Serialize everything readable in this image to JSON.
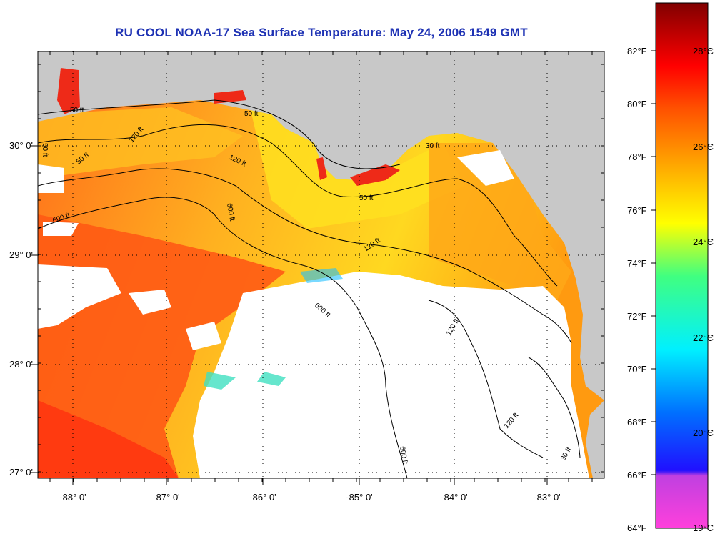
{
  "title": "RU COOL  NOAA-17  Sea Surface Temperature:  May 24, 2006 1549 GMT",
  "map": {
    "lon_labels": [
      "-88° 0'",
      "-87° 0'",
      "-86° 0'",
      "-85° 0'",
      "-84° 0'",
      "-83° 0'"
    ],
    "lat_labels": [
      "30° 0'",
      "29° 0'",
      "28° 0'",
      "27° 0'"
    ],
    "contour_labels": [
      "50 ft",
      "50 ft",
      "50 ft",
      "50 ft",
      "50 ft",
      "120 ft",
      "120 ft",
      "120 ft",
      "120 ft",
      "120 ft",
      "600 ft",
      "600 ft",
      "600 ft",
      "600 ft",
      "30 ft",
      "30 ft"
    ],
    "colors": {
      "land": "#c8c8c8",
      "cloud": "#ffffff",
      "contour": "#000000",
      "title": "#1e32b4"
    }
  },
  "colorbar": {
    "fahrenheit_labels": [
      "82°F",
      "80°F",
      "78°F",
      "76°F",
      "74°F",
      "72°F",
      "70°F",
      "68°F",
      "66°F",
      "64°F"
    ],
    "celsius_labels": [
      "28°C",
      "26°C",
      "24°C",
      "22°C",
      "20°C",
      "19°C"
    ],
    "stops": [
      {
        "color": "#ff40dc"
      },
      {
        "color": "#a040e0"
      },
      {
        "color": "#1010ff"
      },
      {
        "color": "#00a0ff"
      },
      {
        "color": "#00f0ff"
      },
      {
        "color": "#40ff80"
      },
      {
        "color": "#ffff00"
      },
      {
        "color": "#ffa000"
      },
      {
        "color": "#ff5000"
      },
      {
        "color": "#ff0000"
      },
      {
        "color": "#880000"
      }
    ]
  }
}
